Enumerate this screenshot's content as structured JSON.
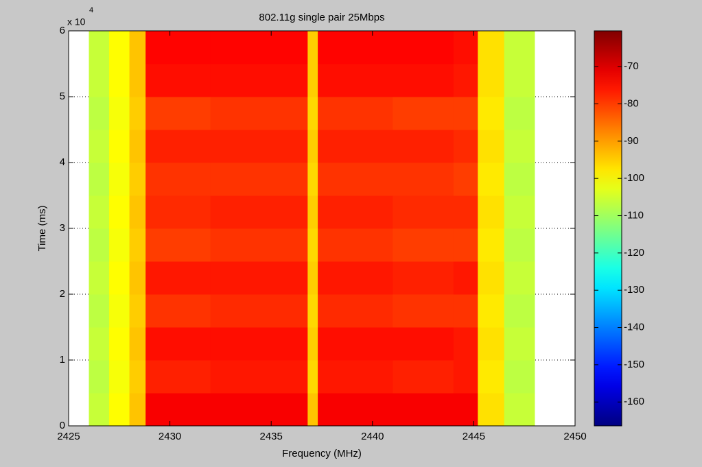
{
  "chart_data": {
    "type": "heatmap",
    "title": "802.11g single pair 25Mbps",
    "x_label": "Frequency (MHz)",
    "y_label": "Time (ms)",
    "y_multiplier": {
      "base": "x 10",
      "exponent": "4"
    },
    "xlim": [
      2425,
      2450
    ],
    "xticks": [
      2425,
      2430,
      2435,
      2440,
      2445,
      2450
    ],
    "ylim": [
      0,
      60000
    ],
    "yticks": [
      {
        "value": 0,
        "label": "0"
      },
      {
        "value": 10000,
        "label": "1"
      },
      {
        "value": 20000,
        "label": "2"
      },
      {
        "value": 30000,
        "label": "3"
      },
      {
        "value": 40000,
        "label": "4"
      },
      {
        "value": 50000,
        "label": "5"
      },
      {
        "value": 60000,
        "label": "6"
      }
    ],
    "grid": true,
    "x_edges": [
      2426,
      2427,
      2428,
      2428.8,
      2432,
      2436.8,
      2437.3,
      2441,
      2444,
      2445.2,
      2446.5,
      2448
    ],
    "y_edges": [
      0,
      5000,
      10000,
      15000,
      20000,
      25000,
      30000,
      35000,
      40000,
      45000,
      50000,
      55000,
      60000
    ],
    "values": [
      [
        -106,
        -100,
        -94,
        -73,
        -73,
        -94,
        -73,
        -73,
        -73,
        -97,
        -106
      ],
      [
        -107,
        -101,
        -95,
        -77,
        -76,
        -96,
        -76,
        -77,
        -76,
        -98,
        -107
      ],
      [
        -106,
        -100,
        -94,
        -75,
        -75,
        -95,
        -75,
        -75,
        -76,
        -97,
        -106
      ],
      [
        -107,
        -101,
        -95,
        -79,
        -78,
        -96,
        -78,
        -79,
        -79,
        -98,
        -107
      ],
      [
        -106,
        -100,
        -94,
        -76,
        -76,
        -95,
        -76,
        -77,
        -76,
        -97,
        -106
      ],
      [
        -107,
        -101,
        -95,
        -80,
        -79,
        -96,
        -79,
        -80,
        -80,
        -98,
        -107
      ],
      [
        -106,
        -100,
        -94,
        -78,
        -77,
        -95,
        -77,
        -78,
        -78,
        -97,
        -106
      ],
      [
        -107,
        -101,
        -95,
        -79,
        -79,
        -96,
        -79,
        -79,
        -80,
        -98,
        -107
      ],
      [
        -106,
        -100,
        -94,
        -77,
        -77,
        -95,
        -77,
        -77,
        -78,
        -97,
        -106
      ],
      [
        -107,
        -101,
        -95,
        -80,
        -79,
        -96,
        -79,
        -80,
        -80,
        -98,
        -107
      ],
      [
        -106,
        -100,
        -94,
        -75,
        -75,
        -95,
        -75,
        -75,
        -76,
        -97,
        -106
      ],
      [
        -106,
        -100,
        -94,
        -74,
        -74,
        -95,
        -74,
        -74,
        -75,
        -97,
        -106
      ]
    ],
    "colormap": "jet",
    "clim": [
      -166.4,
      -60.4
    ],
    "colorbar_ticks": [
      -70,
      -80,
      -90,
      -100,
      -110,
      -120,
      -130,
      -140,
      -150,
      -160
    ]
  }
}
